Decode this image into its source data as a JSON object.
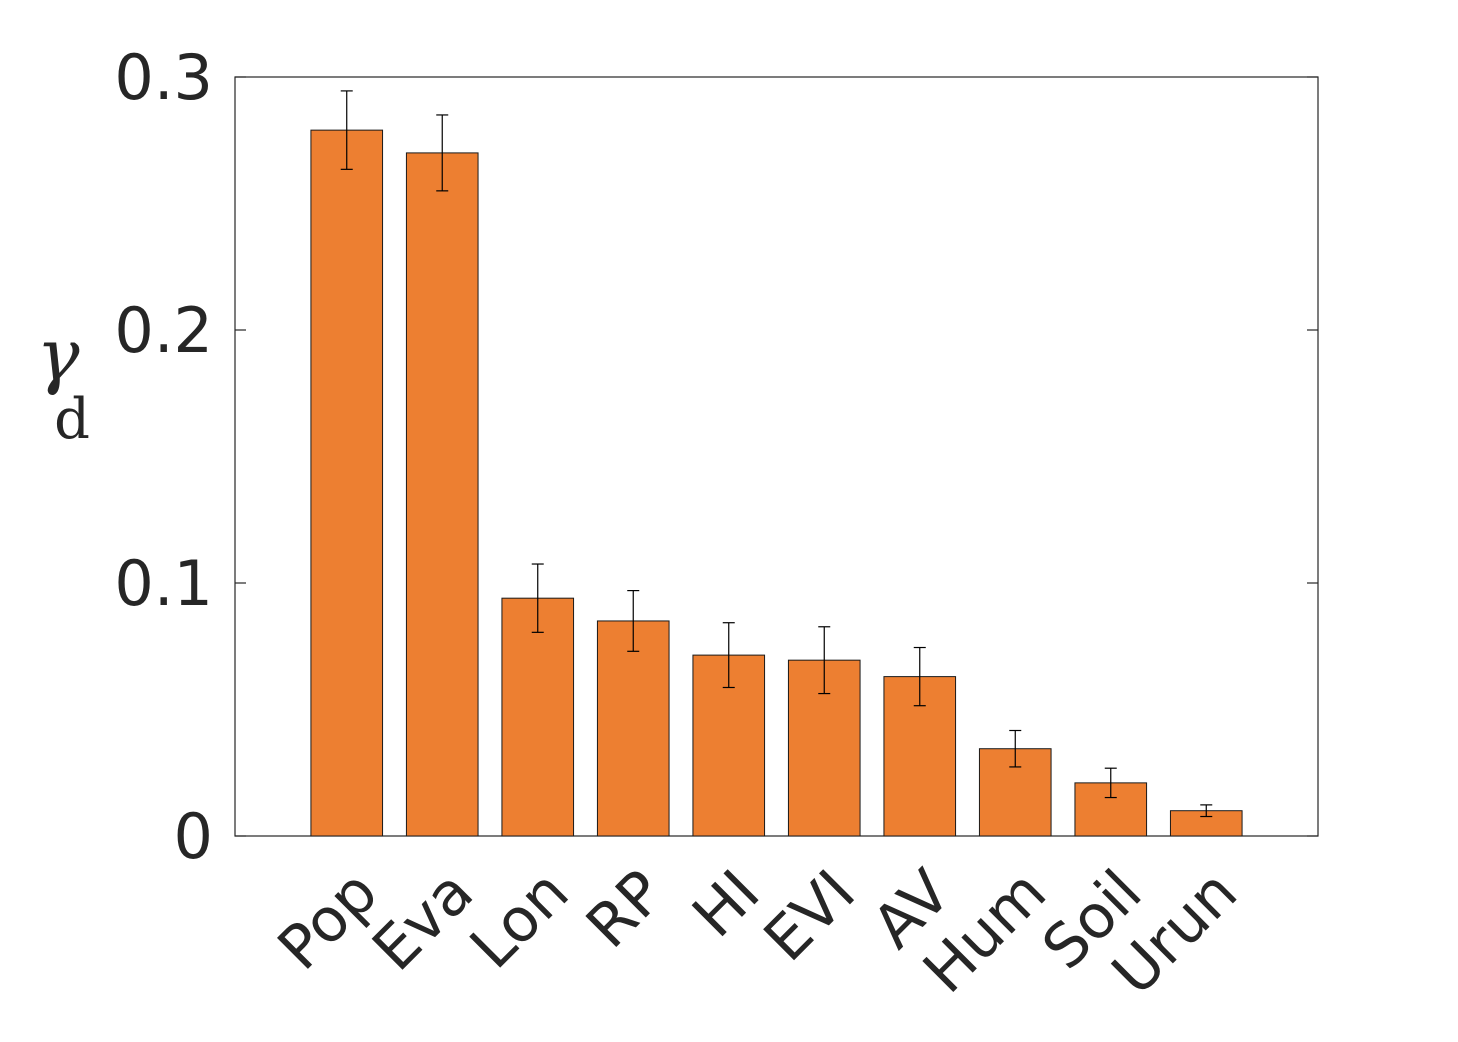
{
  "chart_data": {
    "type": "bar",
    "y_label": {
      "symbol": "γ",
      "subscript": "d"
    },
    "categories": [
      "Pop",
      "Eva",
      "Lon",
      "RP",
      "HI",
      "EVI",
      "AV",
      "Hum",
      "Soil",
      "Urun"
    ],
    "values": [
      0.279,
      0.27,
      0.094,
      0.085,
      0.0715,
      0.0695,
      0.063,
      0.0345,
      0.021,
      0.01
    ],
    "errors": [
      0.0155,
      0.015,
      0.0135,
      0.012,
      0.0128,
      0.0132,
      0.0115,
      0.0072,
      0.0058,
      0.0023
    ],
    "color": "#ed7f31",
    "ylim": [
      0,
      0.3
    ],
    "yticks": [
      0,
      0.1,
      0.2,
      0.3
    ]
  }
}
